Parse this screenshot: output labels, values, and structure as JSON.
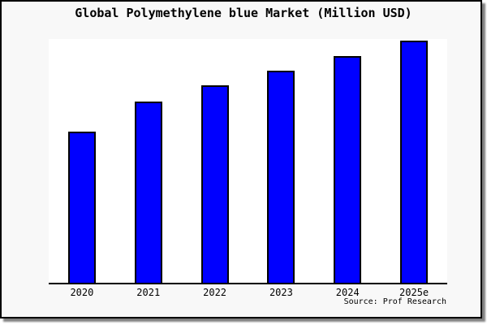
{
  "header": {
    "title": "Global Polymethylene blue Market (Million USD)"
  },
  "footer": {
    "source_label": "Source: Prof Research"
  },
  "colors": {
    "bar_fill": "#0000ff",
    "bar_border": "#000000",
    "card_background": "#f8f8f8",
    "plot_background": "#ffffff",
    "axis": "#000000",
    "text": "#000000",
    "shadow": "#808080"
  },
  "chart_data": {
    "type": "bar",
    "title": "Global Polymethylene blue Market (Million USD)",
    "categories": [
      "2020",
      "2021",
      "2022",
      "2023",
      "2024",
      "2025e"
    ],
    "values": [
      62.7,
      75.0,
      81.7,
      87.7,
      93.7,
      100.0
    ],
    "values_note": "estimated percent of tallest bar (2025e); no y-axis scale shown in image",
    "xlabel": "",
    "ylabel": "",
    "ylim": [
      0,
      100
    ],
    "grid": false,
    "legend": false,
    "y_axis_shown": false,
    "units": "Million USD",
    "source": "Source: Prof Research"
  }
}
